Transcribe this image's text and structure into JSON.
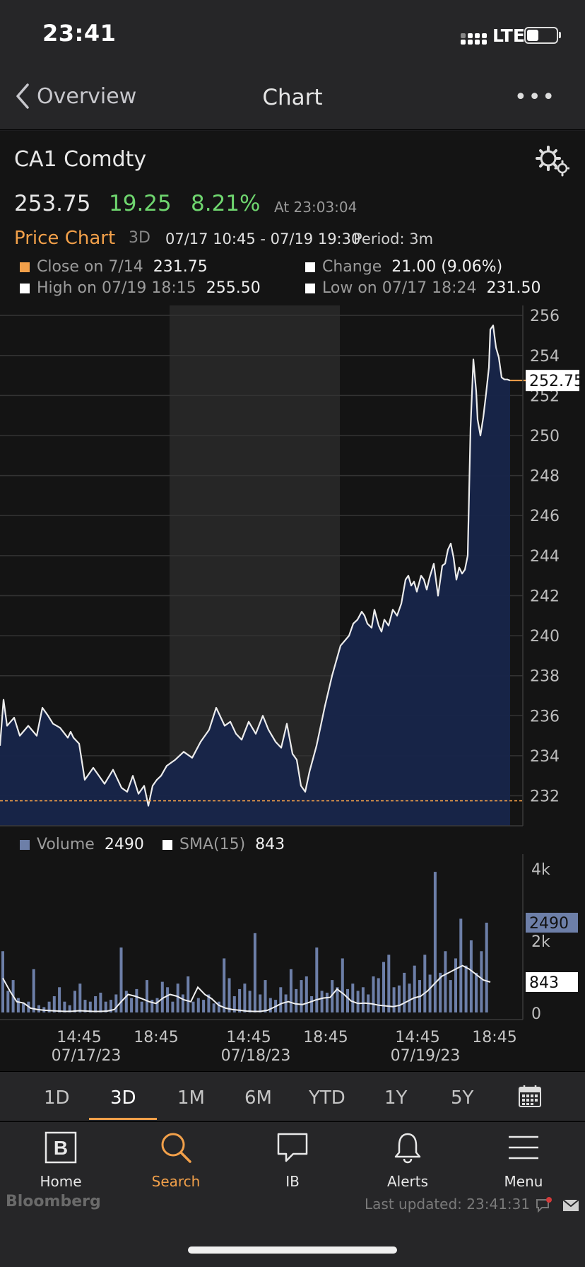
{
  "status_bar": {
    "time": "23:41",
    "network": "LTE"
  },
  "nav": {
    "back_label": "Overview",
    "title": "Chart"
  },
  "security": {
    "ticker": "CA1 Comdty",
    "price": "253.75",
    "change": "19.25",
    "change_pct": "8.21%",
    "timestamp": "At 23:03:04"
  },
  "chart_header": {
    "label": "Price Chart",
    "timeframe": "3D",
    "range": "07/17 10:45 - 07/19 19:30",
    "period": "Period: 3m"
  },
  "legend": {
    "close_label": "Close on 7/14",
    "close_value": "231.75",
    "change_label": "Change",
    "change_value": "21.00 (9.06%)",
    "high_label": "High on 07/19 18:15",
    "high_value": "255.50",
    "low_label": "Low on 07/17 18:24",
    "low_value": "231.50"
  },
  "volume_legend": {
    "volume_label": "Volume",
    "volume_value": "2490",
    "sma_label": "SMA(15)",
    "sma_value": "843"
  },
  "chart_data": [
    {
      "type": "area",
      "ylim": [
        230.5,
        256.5
      ],
      "yticks": [
        256,
        254,
        252,
        250,
        248,
        246,
        244,
        242,
        240,
        238,
        236,
        234,
        232
      ],
      "last_price_label": "252.75",
      "reference_line": 231.75,
      "x": [
        0,
        5,
        10,
        20,
        28,
        40,
        52,
        60,
        68,
        75,
        85,
        96,
        100,
        104,
        112,
        120,
        132,
        148,
        160,
        172,
        180,
        188,
        196,
        204,
        210,
        216,
        222,
        228,
        236,
        248,
        260,
        272,
        284,
        296,
        306,
        318,
        326,
        334,
        342,
        352,
        362,
        372,
        380,
        390,
        398,
        406,
        414,
        420,
        426,
        432,
        438,
        448,
        460,
        470,
        482,
        494,
        500,
        506,
        512,
        516,
        520,
        526,
        530,
        536,
        540,
        544,
        550,
        556,
        562,
        568,
        574,
        578,
        582,
        586,
        590,
        596,
        600,
        604,
        608,
        614,
        620,
        626,
        630,
        634,
        638,
        642,
        646,
        650,
        654,
        658,
        662,
        666,
        670,
        674,
        676,
        680,
        684,
        688,
        692,
        694,
        698,
        702,
        706,
        710,
        714,
        718,
        722
      ],
      "values": [
        234.5,
        236.8,
        235.5,
        235.9,
        235.0,
        235.5,
        235.0,
        236.4,
        236.0,
        235.6,
        235.4,
        234.9,
        235.2,
        234.9,
        234.6,
        232.8,
        233.4,
        232.6,
        233.3,
        232.4,
        232.2,
        233.0,
        232.1,
        232.5,
        231.5,
        232.5,
        232.8,
        233.0,
        233.5,
        233.8,
        234.2,
        233.9,
        234.7,
        235.3,
        236.4,
        235.5,
        235.7,
        235.1,
        234.8,
        235.7,
        235.1,
        236.0,
        235.3,
        234.7,
        234.4,
        235.6,
        234.1,
        233.8,
        232.5,
        232.2,
        233.2,
        234.5,
        236.5,
        238.0,
        239.5,
        240.0,
        240.6,
        240.8,
        241.2,
        241.0,
        240.6,
        240.4,
        241.3,
        240.5,
        240.2,
        240.8,
        240.5,
        241.3,
        241.0,
        241.6,
        242.8,
        243.0,
        242.5,
        242.7,
        242.2,
        243.0,
        242.8,
        242.3,
        242.9,
        243.6,
        242.0,
        243.5,
        243.6,
        244.3,
        244.6,
        243.9,
        242.8,
        243.4,
        243.1,
        243.3,
        244.0,
        250.4,
        253.8,
        252.2,
        250.8,
        250.0,
        250.9,
        252.1,
        253.4,
        255.3,
        255.5,
        254.4,
        253.9,
        252.9,
        252.8,
        252.8,
        252.75
      ]
    },
    {
      "type": "bar",
      "ylim": [
        0,
        4000
      ],
      "yticks": [
        "4k",
        "2k",
        "0"
      ],
      "volume_label_value": "2490",
      "sma_label_value": "843",
      "xtick_times": [
        "14:45",
        "18:45",
        "14:45",
        "18:45",
        "14:45",
        "18:45"
      ],
      "xtick_dates": [
        "07/17/23",
        "07/18/23",
        "07/19/23"
      ],
      "volume_bars": [
        1700,
        600,
        900,
        400,
        250,
        300,
        1200,
        200,
        150,
        300,
        450,
        700,
        300,
        200,
        600,
        800,
        350,
        300,
        450,
        550,
        300,
        350,
        500,
        1800,
        600,
        400,
        650,
        300,
        900,
        350,
        400,
        850,
        700,
        300,
        800,
        500,
        1000,
        300,
        400,
        350,
        500,
        250,
        300,
        1500,
        950,
        450,
        650,
        800,
        600,
        2200,
        500,
        900,
        400,
        350,
        700,
        500,
        1200,
        650,
        900,
        1000,
        450,
        1800,
        600,
        550,
        900,
        700,
        1500,
        650,
        800,
        600,
        700,
        500,
        1000,
        950,
        1400,
        1600,
        700,
        750,
        1100,
        800,
        1300,
        900,
        1600,
        1050,
        3900,
        1100,
        1700,
        900,
        1500,
        2600,
        1300,
        2000,
        1100,
        1700,
        2490
      ],
      "sma": [
        950,
        600,
        300,
        260,
        120,
        80,
        60,
        50,
        40,
        30,
        35,
        50,
        40,
        30,
        30,
        40,
        80,
        300,
        500,
        450,
        380,
        300,
        250,
        400,
        500,
        450,
        350,
        300,
        700,
        500,
        380,
        200,
        120,
        80,
        60,
        40,
        30,
        30,
        60,
        150,
        250,
        300,
        240,
        220,
        280,
        350,
        400,
        420,
        650,
        500,
        320,
        250,
        260,
        240,
        200,
        180,
        160,
        200,
        300,
        400,
        450,
        600,
        800,
        1000,
        1100,
        1200,
        1300,
        1200,
        1050,
        900,
        843
      ]
    }
  ],
  "timeframes": [
    "1D",
    "3D",
    "1M",
    "6M",
    "YTD",
    "1Y",
    "5Y"
  ],
  "active_timeframe": "3D",
  "tabs": [
    {
      "label": "Home",
      "icon": "bloomberg-b-icon"
    },
    {
      "label": "Search",
      "icon": "search-icon"
    },
    {
      "label": "IB",
      "icon": "chat-bubble-icon"
    },
    {
      "label": "Alerts",
      "icon": "bell-icon"
    },
    {
      "label": "Menu",
      "icon": "hamburger-menu-icon"
    }
  ],
  "footer": {
    "brand": "Bloomberg",
    "last_updated": "Last updated: 23:41:31"
  },
  "colors": {
    "accent": "#f2a04a",
    "positive": "#6fd66f",
    "area_fill": "#17254a",
    "volume_bar": "#6d7fa8"
  }
}
